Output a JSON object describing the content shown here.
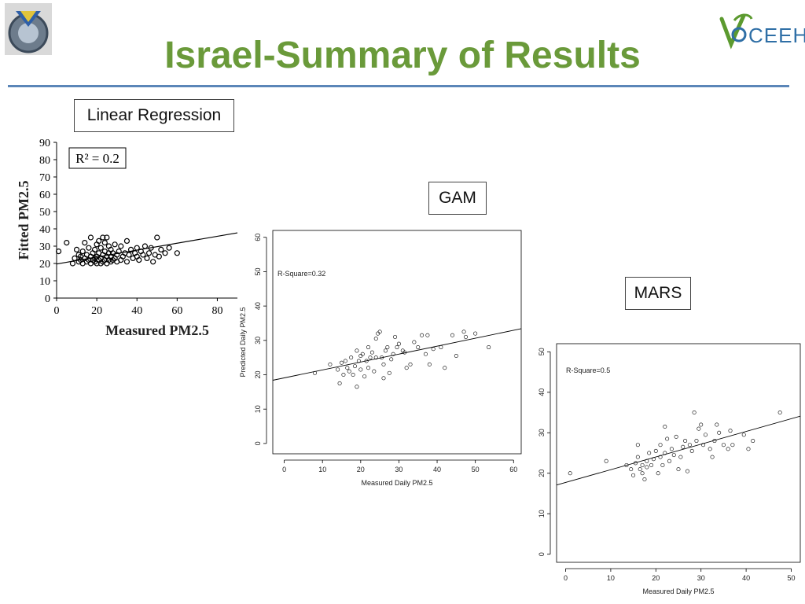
{
  "slide": {
    "title": "Israel-Summary of Results"
  },
  "colors": {
    "title": "#6a9a3a",
    "rule": "#5b86b8",
    "ceeh_green": "#5c9a2f",
    "ceeh_blue": "#2f6fa6"
  },
  "icons": {
    "left_logo": "technion-gear-logo",
    "right_logo": "ceeh-logo"
  },
  "logo_text": "CEEH",
  "labels": {
    "linear": "Linear Regression",
    "gam": "GAM",
    "mars": "MARS"
  },
  "chart_data": [
    {
      "type": "scatter",
      "title": "",
      "xlabel": "Measured PM2.5",
      "ylabel": "Fitted PM2.5",
      "annotation": "R² = 0.2",
      "xlim": [
        0,
        90
      ],
      "ylim": [
        0,
        90
      ],
      "xticks": [
        0,
        20,
        40,
        60,
        80
      ],
      "yticks": [
        0,
        10,
        20,
        30,
        40,
        50,
        60,
        70,
        80,
        90
      ],
      "trendline": {
        "x": [
          0,
          90
        ],
        "y": [
          19.7,
          37.7
        ]
      },
      "points": [
        [
          1,
          27
        ],
        [
          5,
          32
        ],
        [
          8,
          20
        ],
        [
          9,
          23
        ],
        [
          10,
          28
        ],
        [
          11,
          21
        ],
        [
          11,
          25
        ],
        [
          12,
          22
        ],
        [
          12,
          24
        ],
        [
          13,
          20
        ],
        [
          13,
          27
        ],
        [
          14,
          23
        ],
        [
          14,
          32
        ],
        [
          15,
          21
        ],
        [
          15,
          25
        ],
        [
          16,
          22
        ],
        [
          16,
          29
        ],
        [
          17,
          20
        ],
        [
          17,
          24
        ],
        [
          17,
          35
        ],
        [
          18,
          22
        ],
        [
          18,
          26
        ],
        [
          19,
          21
        ],
        [
          19,
          23
        ],
        [
          19,
          28
        ],
        [
          20,
          20
        ],
        [
          20,
          24
        ],
        [
          20,
          31
        ],
        [
          21,
          22
        ],
        [
          21,
          26
        ],
        [
          21,
          33
        ],
        [
          22,
          20
        ],
        [
          22,
          23
        ],
        [
          22,
          29
        ],
        [
          23,
          21
        ],
        [
          23,
          25
        ],
        [
          23,
          35
        ],
        [
          24,
          22
        ],
        [
          24,
          27
        ],
        [
          24,
          32
        ],
        [
          25,
          20
        ],
        [
          25,
          24
        ],
        [
          25,
          35
        ],
        [
          26,
          22
        ],
        [
          26,
          26
        ],
        [
          26,
          30
        ],
        [
          27,
          21
        ],
        [
          27,
          24
        ],
        [
          27,
          28
        ],
        [
          28,
          22
        ],
        [
          28,
          26
        ],
        [
          29,
          23
        ],
        [
          29,
          31
        ],
        [
          30,
          21
        ],
        [
          30,
          25
        ],
        [
          31,
          27
        ],
        [
          32,
          22
        ],
        [
          32,
          30
        ],
        [
          33,
          24
        ],
        [
          34,
          26
        ],
        [
          35,
          21
        ],
        [
          35,
          33
        ],
        [
          36,
          25
        ],
        [
          37,
          28
        ],
        [
          38,
          23
        ],
        [
          39,
          26
        ],
        [
          40,
          24
        ],
        [
          40,
          29
        ],
        [
          41,
          22
        ],
        [
          42,
          27
        ],
        [
          43,
          25
        ],
        [
          44,
          30
        ],
        [
          45,
          23
        ],
        [
          46,
          26
        ],
        [
          47,
          29
        ],
        [
          48,
          21
        ],
        [
          49,
          25
        ],
        [
          50,
          35
        ],
        [
          51,
          24
        ],
        [
          52,
          28
        ],
        [
          54,
          26
        ],
        [
          56,
          29
        ],
        [
          60,
          26
        ]
      ]
    },
    {
      "type": "scatter",
      "title": "",
      "xlabel": "Measured Daily PM2.5",
      "ylabel": "Predicted Daily PM2.5",
      "annotation": "R-Square=0.32",
      "xlim": [
        -3,
        62
      ],
      "ylim": [
        -3,
        62
      ],
      "xticks": [
        0,
        10,
        20,
        30,
        40,
        50,
        60
      ],
      "yticks": [
        0,
        10,
        20,
        30,
        40,
        50,
        60
      ],
      "trendline": {
        "x": [
          -3,
          62
        ],
        "y": [
          18.4,
          33.4
        ]
      },
      "points": [
        [
          8,
          20.5
        ],
        [
          12,
          23
        ],
        [
          14,
          21.5
        ],
        [
          14.5,
          17.5
        ],
        [
          15,
          23.5
        ],
        [
          15.5,
          20
        ],
        [
          16,
          24
        ],
        [
          16.5,
          22
        ],
        [
          17,
          21
        ],
        [
          17.5,
          25
        ],
        [
          18,
          20
        ],
        [
          18.5,
          22.5
        ],
        [
          19,
          16.5
        ],
        [
          19,
          27
        ],
        [
          19.5,
          24
        ],
        [
          20,
          21.5
        ],
        [
          20,
          25.5
        ],
        [
          20.5,
          26
        ],
        [
          21,
          19.5
        ],
        [
          21.5,
          24
        ],
        [
          22,
          28
        ],
        [
          22,
          22
        ],
        [
          22.5,
          25
        ],
        [
          23,
          26.5
        ],
        [
          23.5,
          21
        ],
        [
          24,
          25
        ],
        [
          24,
          30.5
        ],
        [
          24.5,
          32
        ],
        [
          25,
          32.5
        ],
        [
          25.5,
          25
        ],
        [
          26,
          23
        ],
        [
          26,
          19
        ],
        [
          26.5,
          27
        ],
        [
          27,
          28
        ],
        [
          27.5,
          20.5
        ],
        [
          28,
          24.5
        ],
        [
          28.5,
          26
        ],
        [
          29,
          31
        ],
        [
          29.5,
          28
        ],
        [
          30,
          29
        ],
        [
          31,
          27
        ],
        [
          31.5,
          26.5
        ],
        [
          32,
          22
        ],
        [
          33,
          23
        ],
        [
          34,
          29.5
        ],
        [
          35,
          28
        ],
        [
          36,
          31.5
        ],
        [
          37,
          26
        ],
        [
          37.5,
          31.5
        ],
        [
          38,
          23
        ],
        [
          39,
          27.5
        ],
        [
          41,
          28
        ],
        [
          42,
          22
        ],
        [
          44,
          31.5
        ],
        [
          45,
          25.5
        ],
        [
          47,
          32.5
        ],
        [
          47.5,
          31
        ],
        [
          50,
          32
        ],
        [
          53.5,
          28
        ]
      ]
    },
    {
      "type": "scatter",
      "title": "",
      "xlabel": "Measured Daily PM2.5",
      "ylabel": "",
      "annotation": "R-Square=0.5",
      "xlim": [
        -2,
        52
      ],
      "ylim": [
        -2,
        52
      ],
      "xticks": [
        0,
        10,
        20,
        30,
        40,
        50
      ],
      "yticks": [
        0,
        10,
        20,
        30,
        40,
        50
      ],
      "trendline": {
        "x": [
          -2,
          52
        ],
        "y": [
          17.1,
          34.1
        ]
      },
      "points": [
        [
          1,
          20
        ],
        [
          9,
          23
        ],
        [
          13.5,
          22
        ],
        [
          14.5,
          21
        ],
        [
          15,
          19.5
        ],
        [
          15.5,
          22.5
        ],
        [
          16,
          24
        ],
        [
          16,
          27
        ],
        [
          16.5,
          21
        ],
        [
          17,
          20
        ],
        [
          17,
          22
        ],
        [
          17.5,
          18.5
        ],
        [
          18,
          23
        ],
        [
          18,
          21.5
        ],
        [
          18.5,
          25
        ],
        [
          19,
          22
        ],
        [
          19.5,
          23.5
        ],
        [
          20,
          25.5
        ],
        [
          20.5,
          20
        ],
        [
          21,
          24
        ],
        [
          21,
          27
        ],
        [
          21.5,
          22
        ],
        [
          22,
          31.5
        ],
        [
          22,
          25
        ],
        [
          22.5,
          28.5
        ],
        [
          23,
          23
        ],
        [
          23.5,
          26
        ],
        [
          24,
          24.5
        ],
        [
          24.5,
          29
        ],
        [
          25,
          21
        ],
        [
          25.5,
          24
        ],
        [
          26,
          26.5
        ],
        [
          26.5,
          28
        ],
        [
          27,
          20.5
        ],
        [
          27.5,
          27
        ],
        [
          28,
          25.5
        ],
        [
          28.5,
          35
        ],
        [
          29,
          28
        ],
        [
          29.5,
          31
        ],
        [
          30,
          32
        ],
        [
          30.5,
          27
        ],
        [
          31,
          29.5
        ],
        [
          32,
          26
        ],
        [
          32.5,
          24
        ],
        [
          33,
          28
        ],
        [
          33.5,
          32
        ],
        [
          34,
          30
        ],
        [
          35,
          27
        ],
        [
          36,
          26
        ],
        [
          36.5,
          30.5
        ],
        [
          37,
          27
        ],
        [
          39.5,
          29.5
        ],
        [
          40.5,
          26
        ],
        [
          41.5,
          28
        ],
        [
          47.5,
          35
        ]
      ]
    }
  ]
}
